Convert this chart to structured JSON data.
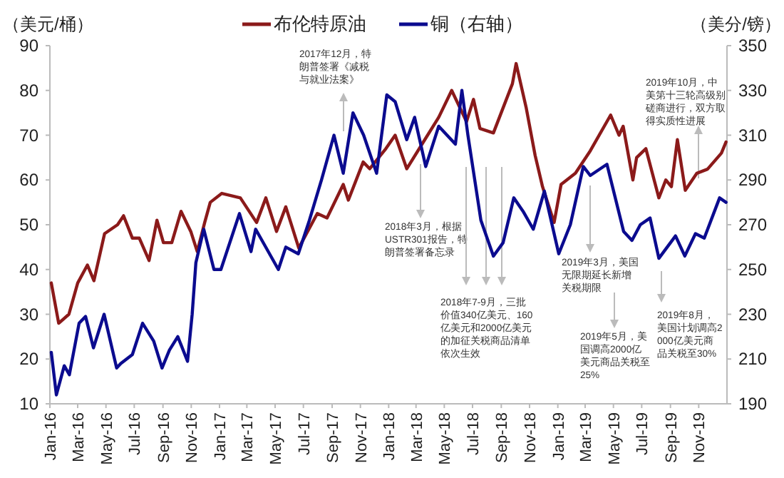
{
  "chart_data": {
    "type": "line",
    "ylabel": "（美元/桶）",
    "y2label": "（美分/镑）",
    "legend": "top",
    "grid": false,
    "xlim": [
      "2016-01-01",
      "2020-01-01"
    ],
    "xticks": [
      {
        "value": "2016-01",
        "label": "Jan-16"
      },
      {
        "value": "2016-03",
        "label": "Mar-16"
      },
      {
        "value": "2016-05",
        "label": "May-16"
      },
      {
        "value": "2016-07",
        "label": "Jul-16"
      },
      {
        "value": "2016-09",
        "label": "Sep-16"
      },
      {
        "value": "2016-11",
        "label": "Nov-16"
      },
      {
        "value": "2017-01",
        "label": "Jan-17"
      },
      {
        "value": "2017-03",
        "label": "Mar-17"
      },
      {
        "value": "2017-05",
        "label": "May-17"
      },
      {
        "value": "2017-07",
        "label": "Jul-17"
      },
      {
        "value": "2017-09",
        "label": "Sep-17"
      },
      {
        "value": "2017-11",
        "label": "Nov-17"
      },
      {
        "value": "2018-01",
        "label": "Jan-18"
      },
      {
        "value": "2018-03",
        "label": "Mar-18"
      },
      {
        "value": "2018-05",
        "label": "May-18"
      },
      {
        "value": "2018-07",
        "label": "Jul-18"
      },
      {
        "value": "2018-09",
        "label": "Sep-18"
      },
      {
        "value": "2018-11",
        "label": "Nov-18"
      },
      {
        "value": "2019-01",
        "label": "Jan-19"
      },
      {
        "value": "2019-03",
        "label": "Mar-19"
      },
      {
        "value": "2019-05",
        "label": "May-19"
      },
      {
        "value": "2019-07",
        "label": "Jul-19"
      },
      {
        "value": "2019-09",
        "label": "Sep-19"
      },
      {
        "value": "2019-11",
        "label": "Nov-19"
      }
    ],
    "ylim": [
      10,
      90
    ],
    "yticks": [
      10,
      20,
      30,
      40,
      50,
      60,
      70,
      80,
      90
    ],
    "y2lim": [
      190,
      350
    ],
    "y2ticks": [
      190,
      210,
      230,
      250,
      270,
      290,
      310,
      330,
      350
    ],
    "series": [
      {
        "name": "布伦特原油",
        "color": "#8b1a1a",
        "x": [
          "2016-01-04",
          "2016-01-20",
          "2016-02-11",
          "2016-03-01",
          "2016-03-22",
          "2016-04-05",
          "2016-04-28",
          "2016-05-26",
          "2016-06-08",
          "2016-06-27",
          "2016-07-12",
          "2016-08-02",
          "2016-08-19",
          "2016-09-02",
          "2016-09-20",
          "2016-10-10",
          "2016-10-31",
          "2016-11-14",
          "2016-11-30",
          "2016-12-12",
          "2017-01-06",
          "2017-02-15",
          "2017-03-22",
          "2017-04-11",
          "2017-05-04",
          "2017-05-24",
          "2017-06-21",
          "2017-07-31",
          "2017-08-21",
          "2017-09-25",
          "2017-10-06",
          "2017-11-07",
          "2017-11-21",
          "2017-12-26",
          "2018-01-15",
          "2018-02-09",
          "2018-03-20",
          "2018-04-19",
          "2018-05-17",
          "2018-06-18",
          "2018-07-03",
          "2018-07-17",
          "2018-08-15",
          "2018-09-25",
          "2018-10-03",
          "2018-10-25",
          "2018-11-13",
          "2018-11-29",
          "2018-12-24",
          "2019-01-08",
          "2019-02-08",
          "2019-03-12",
          "2019-04-25",
          "2019-05-13",
          "2019-05-22",
          "2019-06-12",
          "2019-06-20",
          "2019-07-10",
          "2019-08-07",
          "2019-08-22",
          "2019-09-03",
          "2019-09-16",
          "2019-10-03",
          "2019-10-28",
          "2019-11-20",
          "2019-12-20",
          "2019-12-30"
        ],
        "values": [
          37,
          28,
          30,
          37,
          41,
          37.5,
          48,
          50,
          52,
          47,
          47,
          42,
          51,
          46,
          46,
          53,
          48.5,
          44,
          50.5,
          55,
          57,
          56,
          50.5,
          56,
          48.5,
          54,
          44.8,
          52.5,
          51.5,
          59,
          55.5,
          64,
          62.5,
          67,
          70,
          62.5,
          69,
          74,
          80,
          73,
          78,
          71.5,
          70.5,
          81.5,
          86,
          76,
          65.5,
          58.5,
          50.5,
          59,
          61.5,
          66.5,
          74.5,
          70,
          72,
          60,
          65,
          67,
          56,
          60,
          58.5,
          69,
          57.7,
          61.5,
          62.4,
          66,
          68.5
        ]
      },
      {
        "name": "铜（右轴）",
        "color": "#0b0b8f",
        "axis": "y2",
        "x": [
          "2016-01-04",
          "2016-01-15",
          "2016-02-01",
          "2016-02-12",
          "2016-03-04",
          "2016-03-18",
          "2016-04-04",
          "2016-04-27",
          "2016-05-24",
          "2016-06-02",
          "2016-06-27",
          "2016-07-19",
          "2016-08-12",
          "2016-08-30",
          "2016-09-15",
          "2016-10-03",
          "2016-10-24",
          "2016-11-03",
          "2016-11-11",
          "2016-11-28",
          "2016-12-20",
          "2017-01-04",
          "2017-02-13",
          "2017-03-10",
          "2017-03-20",
          "2017-05-08",
          "2017-05-24",
          "2017-06-20",
          "2017-07-14",
          "2017-08-09",
          "2017-09-05",
          "2017-09-25",
          "2017-10-16",
          "2017-11-08",
          "2017-12-06",
          "2017-12-28",
          "2018-01-15",
          "2018-02-09",
          "2018-02-26",
          "2018-03-22",
          "2018-04-19",
          "2018-05-25",
          "2018-06-08",
          "2018-06-21",
          "2018-07-19",
          "2018-08-15",
          "2018-09-05",
          "2018-09-28",
          "2018-10-18",
          "2018-11-09",
          "2018-12-03",
          "2019-01-03",
          "2019-01-28",
          "2019-02-25",
          "2019-03-12",
          "2019-04-17",
          "2019-05-23",
          "2019-06-10",
          "2019-06-28",
          "2019-07-19",
          "2019-08-07",
          "2019-09-12",
          "2019-10-02",
          "2019-10-25",
          "2019-11-13",
          "2019-12-16",
          "2019-12-30"
        ],
        "values": [
          213,
          194,
          207,
          203,
          226,
          229,
          215,
          230,
          206,
          208,
          212,
          226,
          218,
          206,
          214,
          220,
          209,
          230,
          253,
          268,
          250,
          250,
          275,
          258,
          268,
          250,
          260,
          257,
          272,
          290,
          310,
          293,
          320,
          310,
          293,
          328,
          325,
          308,
          318,
          296,
          314,
          306,
          330,
          310,
          272,
          256,
          262,
          282,
          276,
          268,
          285,
          257,
          270,
          296,
          292,
          297,
          267,
          263,
          270,
          273,
          255,
          265,
          256,
          266,
          264,
          282,
          280
        ]
      }
    ],
    "annotations": [
      "2017年12月，特朗普签署《减税与就业法案》",
      "2018年3月，根据USTR301报告，特朗普签署备忘录",
      "2018年7-9月，三批价值340亿美元、160亿美元和2000亿美元的加征关税商品清单依次生效",
      "2019年3月，美国无限期延长新增关税期限",
      "2019年5月，美国调高2000亿美元商品关税至25%",
      "2019年8月，美国计划调高2000亿美元商品关税至30%",
      "2019年10月，中美第十三轮高级别磋商进行，双方取得实质性进展"
    ]
  }
}
